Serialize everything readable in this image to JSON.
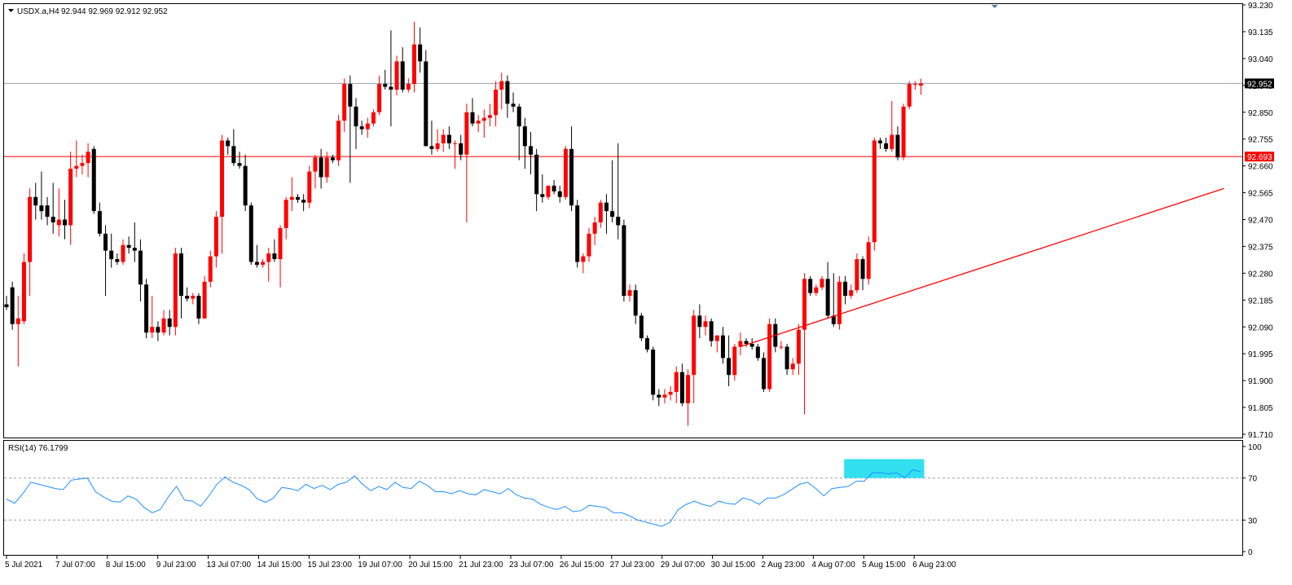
{
  "header": {
    "symbol": "USDX.a,H4",
    "ohlc": "92.944 92.969 92.912 92.952"
  },
  "rsi_header": "RSI(14) 76.1799",
  "colors": {
    "bull": "#FF0000",
    "bear": "#000000",
    "rsi_line": "#1E90FF",
    "rsi_highlight": "#33E0F0",
    "bid_line": "#8FA3B8",
    "resistance": "#FF0000",
    "trendline": "#FF0000"
  },
  "price_axis": {
    "ticks": [
      "93.230",
      "93.135",
      "93.040",
      "92.945",
      "92.850",
      "92.755",
      "92.660",
      "92.565",
      "92.470",
      "92.375",
      "92.280",
      "92.185",
      "92.090",
      "91.995",
      "91.900",
      "91.805",
      "91.710"
    ],
    "current_price": "92.952",
    "level_price": "92.693"
  },
  "rsi_axis": {
    "ticks": [
      "100",
      "70",
      "30",
      "0"
    ]
  },
  "time_axis": {
    "ticks": [
      "5 Jul 2021",
      "7 Jul 07:00",
      "8 Jul 15:00",
      "9 Jul 23:00",
      "13 Jul 07:00",
      "14 Jul 15:00",
      "15 Jul 23:00",
      "19 Jul 07:00",
      "20 Jul 15:00",
      "21 Jul 23:00",
      "23 Jul 07:00",
      "26 Jul 15:00",
      "27 Jul 23:00",
      "29 Jul 07:00",
      "30 Jul 15:00",
      "2 Aug 23:00",
      "4 Aug 07:00",
      "5 Aug 15:00",
      "6 Aug 23:00"
    ]
  },
  "chart_data": {
    "type": "candlestick",
    "symbol": "USDX.a",
    "timeframe": "H4",
    "ylim": [
      91.71,
      93.23
    ],
    "horizontal_lines": [
      {
        "price": 92.952,
        "label": "92.952",
        "color": "#8FA3B8"
      },
      {
        "price": 92.693,
        "label": "92.693",
        "color": "#FF0000"
      }
    ],
    "trendline": {
      "from": {
        "bar": 126,
        "price": 92.02
      },
      "to": {
        "bar": 209,
        "price": 92.58
      }
    },
    "candles": [
      {
        "o": 92.17,
        "h": 92.2,
        "l": 92.15,
        "c": 92.16
      },
      {
        "o": 92.23,
        "h": 92.25,
        "l": 92.08,
        "c": 92.1
      },
      {
        "o": 92.1,
        "h": 92.2,
        "l": 91.95,
        "c": 92.12
      },
      {
        "o": 92.11,
        "h": 92.35,
        "l": 92.1,
        "c": 92.32
      },
      {
        "o": 92.32,
        "h": 92.58,
        "l": 92.2,
        "c": 92.55
      },
      {
        "o": 92.55,
        "h": 92.6,
        "l": 92.47,
        "c": 92.52
      },
      {
        "o": 92.52,
        "h": 92.64,
        "l": 92.47,
        "c": 92.5
      },
      {
        "o": 92.52,
        "h": 92.55,
        "l": 92.45,
        "c": 92.48
      },
      {
        "o": 92.48,
        "h": 92.6,
        "l": 92.42,
        "c": 92.46
      },
      {
        "o": 92.45,
        "h": 92.58,
        "l": 92.41,
        "c": 92.47
      },
      {
        "o": 92.47,
        "h": 92.54,
        "l": 92.4,
        "c": 92.45
      },
      {
        "o": 92.45,
        "h": 92.71,
        "l": 92.38,
        "c": 92.65
      },
      {
        "o": 92.65,
        "h": 92.75,
        "l": 92.62,
        "c": 92.66
      },
      {
        "o": 92.66,
        "h": 92.7,
        "l": 92.63,
        "c": 92.67
      },
      {
        "o": 92.67,
        "h": 92.74,
        "l": 92.62,
        "c": 92.71
      },
      {
        "o": 92.72,
        "h": 92.73,
        "l": 92.49,
        "c": 92.5
      },
      {
        "o": 92.5,
        "h": 92.53,
        "l": 92.41,
        "c": 92.42
      },
      {
        "o": 92.42,
        "h": 92.45,
        "l": 92.2,
        "c": 92.36
      },
      {
        "o": 92.36,
        "h": 92.42,
        "l": 92.3,
        "c": 92.33
      },
      {
        "o": 92.33,
        "h": 92.35,
        "l": 92.31,
        "c": 92.32
      },
      {
        "o": 92.32,
        "h": 92.4,
        "l": 92.31,
        "c": 92.38
      },
      {
        "o": 92.38,
        "h": 92.41,
        "l": 92.35,
        "c": 92.37
      },
      {
        "o": 92.37,
        "h": 92.46,
        "l": 92.32,
        "c": 92.36
      },
      {
        "o": 92.36,
        "h": 92.4,
        "l": 92.18,
        "c": 92.24
      },
      {
        "o": 92.24,
        "h": 92.26,
        "l": 92.05,
        "c": 92.07
      },
      {
        "o": 92.07,
        "h": 92.2,
        "l": 92.05,
        "c": 92.09
      },
      {
        "o": 92.09,
        "h": 92.11,
        "l": 92.04,
        "c": 92.07
      },
      {
        "o": 92.07,
        "h": 92.15,
        "l": 92.06,
        "c": 92.12
      },
      {
        "o": 92.12,
        "h": 92.15,
        "l": 92.06,
        "c": 92.09
      },
      {
        "o": 92.09,
        "h": 92.37,
        "l": 92.06,
        "c": 92.35
      },
      {
        "o": 92.35,
        "h": 92.37,
        "l": 92.12,
        "c": 92.2
      },
      {
        "o": 92.2,
        "h": 92.23,
        "l": 92.18,
        "c": 92.19
      },
      {
        "o": 92.19,
        "h": 92.21,
        "l": 92.17,
        "c": 92.2
      },
      {
        "o": 92.2,
        "h": 92.21,
        "l": 92.1,
        "c": 92.12
      },
      {
        "o": 92.12,
        "h": 92.27,
        "l": 92.12,
        "c": 92.25
      },
      {
        "o": 92.25,
        "h": 92.36,
        "l": 92.23,
        "c": 92.34
      },
      {
        "o": 92.34,
        "h": 92.5,
        "l": 92.3,
        "c": 92.48
      },
      {
        "o": 92.48,
        "h": 92.77,
        "l": 92.35,
        "c": 92.75
      },
      {
        "o": 92.75,
        "h": 92.76,
        "l": 92.7,
        "c": 92.73
      },
      {
        "o": 92.73,
        "h": 92.79,
        "l": 92.66,
        "c": 92.67
      },
      {
        "o": 92.67,
        "h": 92.71,
        "l": 92.65,
        "c": 92.66
      },
      {
        "o": 92.66,
        "h": 92.7,
        "l": 92.5,
        "c": 92.52
      },
      {
        "o": 92.52,
        "h": 92.53,
        "l": 92.31,
        "c": 92.32
      },
      {
        "o": 92.32,
        "h": 92.38,
        "l": 92.3,
        "c": 92.31
      },
      {
        "o": 92.31,
        "h": 92.33,
        "l": 92.3,
        "c": 92.32
      },
      {
        "o": 92.32,
        "h": 92.37,
        "l": 92.25,
        "c": 92.35
      },
      {
        "o": 92.35,
        "h": 92.4,
        "l": 92.32,
        "c": 92.33
      },
      {
        "o": 92.33,
        "h": 92.45,
        "l": 92.23,
        "c": 92.44
      },
      {
        "o": 92.44,
        "h": 92.55,
        "l": 92.4,
        "c": 92.54
      },
      {
        "o": 92.54,
        "h": 92.62,
        "l": 92.5,
        "c": 92.55
      },
      {
        "o": 92.55,
        "h": 92.56,
        "l": 92.53,
        "c": 92.54
      },
      {
        "o": 92.54,
        "h": 92.56,
        "l": 92.5,
        "c": 92.53
      },
      {
        "o": 92.53,
        "h": 92.66,
        "l": 92.51,
        "c": 92.64
      },
      {
        "o": 92.64,
        "h": 92.7,
        "l": 92.58,
        "c": 92.69
      },
      {
        "o": 92.69,
        "h": 92.72,
        "l": 92.58,
        "c": 92.62
      },
      {
        "o": 92.62,
        "h": 92.71,
        "l": 92.6,
        "c": 92.69
      },
      {
        "o": 92.69,
        "h": 92.7,
        "l": 92.67,
        "c": 92.68
      },
      {
        "o": 92.68,
        "h": 92.84,
        "l": 92.66,
        "c": 92.82
      },
      {
        "o": 92.82,
        "h": 92.97,
        "l": 92.78,
        "c": 92.95
      },
      {
        "o": 92.95,
        "h": 92.98,
        "l": 92.6,
        "c": 92.87
      },
      {
        "o": 92.87,
        "h": 92.9,
        "l": 92.72,
        "c": 92.8
      },
      {
        "o": 92.8,
        "h": 92.82,
        "l": 92.77,
        "c": 92.79
      },
      {
        "o": 92.79,
        "h": 92.83,
        "l": 92.76,
        "c": 92.81
      },
      {
        "o": 92.81,
        "h": 92.86,
        "l": 92.8,
        "c": 92.85
      },
      {
        "o": 92.85,
        "h": 92.98,
        "l": 92.84,
        "c": 92.95
      },
      {
        "o": 92.95,
        "h": 93.0,
        "l": 92.93,
        "c": 92.94
      },
      {
        "o": 92.94,
        "h": 93.14,
        "l": 92.8,
        "c": 92.93
      },
      {
        "o": 92.93,
        "h": 93.05,
        "l": 92.91,
        "c": 93.03
      },
      {
        "o": 93.03,
        "h": 93.08,
        "l": 92.92,
        "c": 92.93
      },
      {
        "o": 92.93,
        "h": 92.97,
        "l": 92.92,
        "c": 92.95
      },
      {
        "o": 92.95,
        "h": 93.17,
        "l": 92.92,
        "c": 93.09
      },
      {
        "o": 93.09,
        "h": 93.15,
        "l": 92.99,
        "c": 93.03
      },
      {
        "o": 93.03,
        "h": 93.07,
        "l": 92.73,
        "c": 92.73
      },
      {
        "o": 92.73,
        "h": 92.82,
        "l": 92.7,
        "c": 92.72
      },
      {
        "o": 92.72,
        "h": 92.79,
        "l": 92.71,
        "c": 92.74
      },
      {
        "o": 92.74,
        "h": 92.79,
        "l": 92.71,
        "c": 92.77
      },
      {
        "o": 92.77,
        "h": 92.8,
        "l": 92.72,
        "c": 92.74
      },
      {
        "o": 92.74,
        "h": 92.75,
        "l": 92.65,
        "c": 92.74
      },
      {
        "o": 92.74,
        "h": 92.77,
        "l": 92.68,
        "c": 92.7
      },
      {
        "o": 92.7,
        "h": 92.88,
        "l": 92.46,
        "c": 92.85
      },
      {
        "o": 92.85,
        "h": 92.9,
        "l": 92.8,
        "c": 92.81
      },
      {
        "o": 92.81,
        "h": 92.84,
        "l": 92.78,
        "c": 92.82
      },
      {
        "o": 92.82,
        "h": 92.86,
        "l": 92.76,
        "c": 92.83
      },
      {
        "o": 92.83,
        "h": 92.88,
        "l": 92.8,
        "c": 92.84
      },
      {
        "o": 92.84,
        "h": 92.96,
        "l": 92.8,
        "c": 92.93
      },
      {
        "o": 92.93,
        "h": 92.99,
        "l": 92.86,
        "c": 92.96
      },
      {
        "o": 92.96,
        "h": 92.98,
        "l": 92.83,
        "c": 92.88
      },
      {
        "o": 92.88,
        "h": 92.92,
        "l": 92.85,
        "c": 92.87
      },
      {
        "o": 92.87,
        "h": 92.88,
        "l": 92.68,
        "c": 92.8
      },
      {
        "o": 92.8,
        "h": 92.83,
        "l": 92.65,
        "c": 92.73
      },
      {
        "o": 92.73,
        "h": 92.78,
        "l": 92.63,
        "c": 92.7
      },
      {
        "o": 92.7,
        "h": 92.72,
        "l": 92.5,
        "c": 92.56
      },
      {
        "o": 92.56,
        "h": 92.63,
        "l": 92.53,
        "c": 92.55
      },
      {
        "o": 92.55,
        "h": 92.59,
        "l": 92.54,
        "c": 92.59
      },
      {
        "o": 92.59,
        "h": 92.61,
        "l": 92.56,
        "c": 92.57
      },
      {
        "o": 92.57,
        "h": 92.59,
        "l": 92.53,
        "c": 92.55
      },
      {
        "o": 92.55,
        "h": 92.73,
        "l": 92.54,
        "c": 92.72
      },
      {
        "o": 92.72,
        "h": 92.8,
        "l": 92.5,
        "c": 92.52
      },
      {
        "o": 92.52,
        "h": 92.54,
        "l": 92.3,
        "c": 92.32
      },
      {
        "o": 92.32,
        "h": 92.35,
        "l": 92.28,
        "c": 92.34
      },
      {
        "o": 92.34,
        "h": 92.44,
        "l": 92.32,
        "c": 92.42
      },
      {
        "o": 92.42,
        "h": 92.48,
        "l": 92.38,
        "c": 92.46
      },
      {
        "o": 92.46,
        "h": 92.54,
        "l": 92.44,
        "c": 92.53
      },
      {
        "o": 92.53,
        "h": 92.56,
        "l": 92.42,
        "c": 92.5
      },
      {
        "o": 92.5,
        "h": 92.68,
        "l": 92.46,
        "c": 92.48
      },
      {
        "o": 92.48,
        "h": 92.74,
        "l": 92.4,
        "c": 92.45
      },
      {
        "o": 92.45,
        "h": 92.47,
        "l": 92.18,
        "c": 92.2
      },
      {
        "o": 92.2,
        "h": 92.24,
        "l": 92.18,
        "c": 92.22
      },
      {
        "o": 92.22,
        "h": 92.24,
        "l": 92.1,
        "c": 92.13
      },
      {
        "o": 92.13,
        "h": 92.14,
        "l": 92.04,
        "c": 92.05
      },
      {
        "o": 92.05,
        "h": 92.06,
        "l": 92.0,
        "c": 92.01
      },
      {
        "o": 92.01,
        "h": 92.02,
        "l": 91.83,
        "c": 91.85
      },
      {
        "o": 91.85,
        "h": 91.87,
        "l": 91.81,
        "c": 91.84
      },
      {
        "o": 91.84,
        "h": 91.87,
        "l": 91.82,
        "c": 91.85
      },
      {
        "o": 91.85,
        "h": 91.88,
        "l": 91.83,
        "c": 91.86
      },
      {
        "o": 91.86,
        "h": 91.95,
        "l": 91.82,
        "c": 91.93
      },
      {
        "o": 91.93,
        "h": 91.96,
        "l": 91.81,
        "c": 91.82
      },
      {
        "o": 91.82,
        "h": 91.94,
        "l": 91.74,
        "c": 91.92
      },
      {
        "o": 91.92,
        "h": 92.15,
        "l": 91.82,
        "c": 92.13
      },
      {
        "o": 92.13,
        "h": 92.17,
        "l": 92.05,
        "c": 92.09
      },
      {
        "o": 92.09,
        "h": 92.13,
        "l": 92.06,
        "c": 92.11
      },
      {
        "o": 92.11,
        "h": 92.12,
        "l": 92.02,
        "c": 92.04
      },
      {
        "o": 92.04,
        "h": 92.06,
        "l": 92.0,
        "c": 92.06
      },
      {
        "o": 92.06,
        "h": 92.09,
        "l": 91.96,
        "c": 91.98
      },
      {
        "o": 91.98,
        "h": 92.06,
        "l": 91.88,
        "c": 91.92
      },
      {
        "o": 91.92,
        "h": 92.03,
        "l": 91.9,
        "c": 92.02
      },
      {
        "o": 92.02,
        "h": 92.07,
        "l": 91.99,
        "c": 92.04
      },
      {
        "o": 92.04,
        "h": 92.05,
        "l": 92.02,
        "c": 92.03
      },
      {
        "o": 92.03,
        "h": 92.05,
        "l": 92.01,
        "c": 92.02
      },
      {
        "o": 92.02,
        "h": 92.03,
        "l": 91.97,
        "c": 91.98
      },
      {
        "o": 91.98,
        "h": 92.0,
        "l": 91.86,
        "c": 91.87
      },
      {
        "o": 91.87,
        "h": 92.12,
        "l": 91.86,
        "c": 92.1
      },
      {
        "o": 92.1,
        "h": 92.12,
        "l": 92.0,
        "c": 92.02
      },
      {
        "o": 92.02,
        "h": 92.04,
        "l": 92.01,
        "c": 92.02
      },
      {
        "o": 92.02,
        "h": 92.03,
        "l": 91.92,
        "c": 91.94
      },
      {
        "o": 91.94,
        "h": 91.98,
        "l": 91.92,
        "c": 91.96
      },
      {
        "o": 91.96,
        "h": 92.1,
        "l": 91.92,
        "c": 92.08
      },
      {
        "o": 92.08,
        "h": 92.28,
        "l": 91.78,
        "c": 92.26
      },
      {
        "o": 92.26,
        "h": 92.27,
        "l": 92.2,
        "c": 92.21
      },
      {
        "o": 92.21,
        "h": 92.24,
        "l": 92.2,
        "c": 92.23
      },
      {
        "o": 92.23,
        "h": 92.27,
        "l": 92.22,
        "c": 92.26
      },
      {
        "o": 92.26,
        "h": 92.32,
        "l": 92.12,
        "c": 92.13
      },
      {
        "o": 92.13,
        "h": 92.28,
        "l": 92.09,
        "c": 92.1
      },
      {
        "o": 92.1,
        "h": 92.27,
        "l": 92.08,
        "c": 92.25
      },
      {
        "o": 92.25,
        "h": 92.27,
        "l": 92.17,
        "c": 92.2
      },
      {
        "o": 92.2,
        "h": 92.24,
        "l": 92.19,
        "c": 92.22
      },
      {
        "o": 92.22,
        "h": 92.35,
        "l": 92.21,
        "c": 92.33
      },
      {
        "o": 92.33,
        "h": 92.34,
        "l": 92.22,
        "c": 92.26
      },
      {
        "o": 92.26,
        "h": 92.41,
        "l": 92.24,
        "c": 92.39
      },
      {
        "o": 92.39,
        "h": 92.76,
        "l": 92.36,
        "c": 92.75
      },
      {
        "o": 92.75,
        "h": 92.76,
        "l": 92.72,
        "c": 92.74
      },
      {
        "o": 92.74,
        "h": 92.76,
        "l": 92.71,
        "c": 92.72
      },
      {
        "o": 92.72,
        "h": 92.89,
        "l": 92.71,
        "c": 92.77
      },
      {
        "o": 92.77,
        "h": 92.8,
        "l": 92.68,
        "c": 92.69
      },
      {
        "o": 92.69,
        "h": 92.88,
        "l": 92.68,
        "c": 92.87
      },
      {
        "o": 92.87,
        "h": 92.96,
        "l": 92.86,
        "c": 92.95
      },
      {
        "o": 92.95,
        "h": 92.96,
        "l": 92.93,
        "c": 92.95
      },
      {
        "o": 92.944,
        "h": 92.969,
        "l": 92.912,
        "c": 92.952
      }
    ]
  },
  "rsi_data": {
    "period": 14,
    "value": 76.1799,
    "levels": [
      70,
      30
    ],
    "highlight": {
      "from_value": 70,
      "to_value": 88
    },
    "values": [
      50,
      46,
      55,
      66,
      64,
      62,
      60,
      59,
      68,
      69,
      70,
      57,
      52,
      48,
      47,
      53,
      50,
      42,
      37,
      40,
      52,
      62,
      49,
      48,
      43,
      53,
      64,
      71,
      66,
      63,
      59,
      50,
      47,
      51,
      61,
      60,
      58,
      64,
      60,
      63,
      59,
      64,
      66,
      72,
      64,
      58,
      62,
      59,
      66,
      61,
      60,
      67,
      63,
      57,
      57,
      55,
      58,
      55,
      54,
      59,
      57,
      55,
      60,
      54,
      51,
      50,
      45,
      42,
      40,
      43,
      38,
      39,
      44,
      43,
      42,
      37,
      37,
      34,
      30,
      28,
      26,
      24,
      28,
      40,
      45,
      48,
      45,
      43,
      48,
      46,
      45,
      51,
      49,
      45,
      51,
      51,
      54,
      59,
      64,
      66,
      60,
      53,
      60,
      61,
      62,
      67,
      67,
      75,
      75,
      74,
      75,
      70,
      78,
      76
    ]
  }
}
